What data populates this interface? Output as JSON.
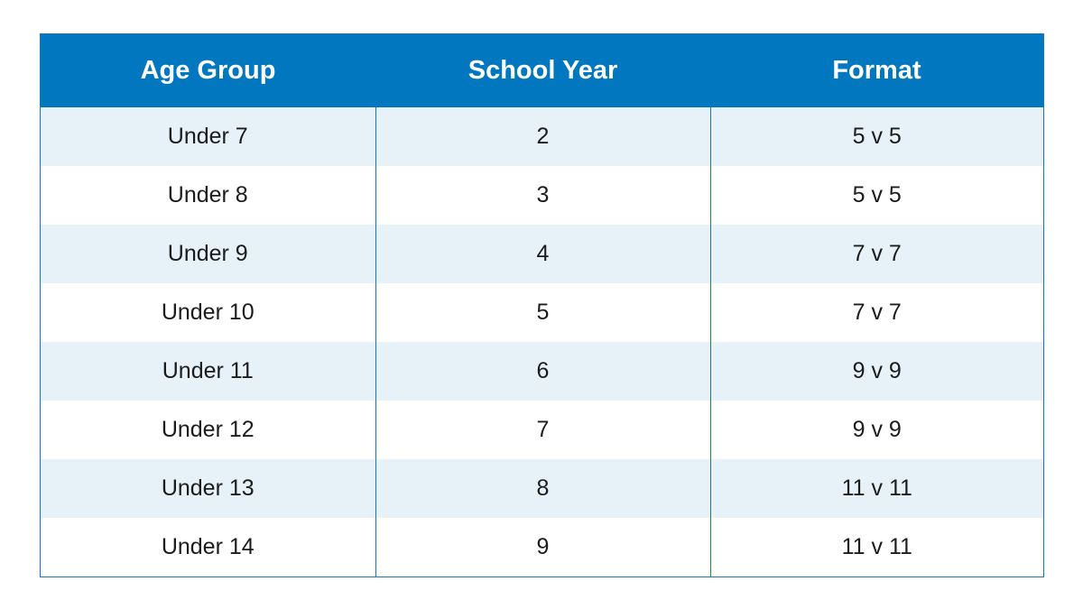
{
  "table": {
    "headers": [
      "Age Group",
      "School Year",
      "Format"
    ],
    "rows": [
      [
        "Under 7",
        "2",
        "5 v 5"
      ],
      [
        "Under 8",
        "3",
        "5 v 5"
      ],
      [
        "Under 9",
        "4",
        "7 v 7"
      ],
      [
        "Under 10",
        "5",
        "7 v 7"
      ],
      [
        "Under 11",
        "6",
        "9 v 9"
      ],
      [
        "Under 12",
        "7",
        "9 v 9"
      ],
      [
        "Under 13",
        "8",
        "11 v 11"
      ],
      [
        "Under 14",
        "9",
        "11 v 11"
      ]
    ]
  },
  "colors": {
    "header_background": "#0077be",
    "header_text": "#ffffff",
    "stripe_background": "#e6f1f8",
    "border": "#1a74b8",
    "body_text": "#1c1c1c"
  }
}
